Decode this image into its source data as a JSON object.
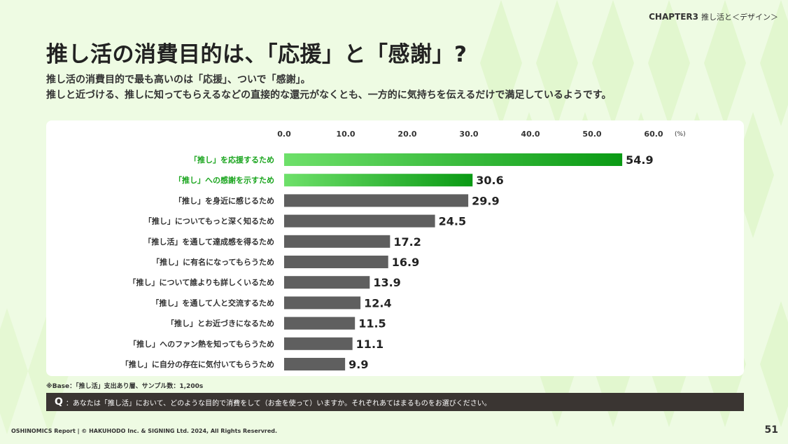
{
  "header": {
    "chapter": "CHAPTER3",
    "chapter_sub": "推し活と＜デザイン＞"
  },
  "title": "推し活の消費目的は、「応援」と「感謝」?",
  "lead": {
    "line1": "推し活の消費目的で最も高いのは「応援」、ついで「感謝」。",
    "line2": "推しと近づける、推しに知ってもらえるなどの直接的な還元がなくとも、一方的に気持ちを伝えるだけで満足しているようです。"
  },
  "chart_data": {
    "type": "bar",
    "orientation": "horizontal",
    "x_ticks": [
      "0.0",
      "10.0",
      "20.0",
      "30.0",
      "40.0",
      "50.0",
      "60.0"
    ],
    "x_unit": "(%)",
    "xlim": [
      0,
      60
    ],
    "categories": [
      "「推し」を応援するため",
      "「推し」への感謝を示すため",
      "「推し」を身近に感じるため",
      "「推し」についてもっと深く知るため",
      "「推し活」を通して達成感を得るため",
      "「推し」に有名になってもらうため",
      "「推し」について誰よりも詳しくいるため",
      "「推し」を通して人と交流するため",
      "「推し」とお近づきになるため",
      "「推し」へのファン熱を知ってもらうため",
      "「推し」に自分の存在に気付いてもらうため"
    ],
    "values": [
      54.9,
      30.6,
      29.9,
      24.5,
      17.2,
      16.9,
      13.9,
      12.4,
      11.5,
      11.1,
      9.9
    ],
    "value_labels": [
      "54.9",
      "30.6",
      "29.9",
      "24.5",
      "17.2",
      "16.9",
      "13.9",
      "12.4",
      "11.5",
      "11.1",
      "9.9"
    ],
    "highlight_count": 2,
    "colors": {
      "highlight_start": "#6ee06a",
      "highlight_end": "#0a9a14",
      "highlight_label": "#1aa51e",
      "normal_bar": "#5f5f5f",
      "normal_label": "#333333"
    }
  },
  "base_note": "※Base：「推し活」支出あり層、サンプル数：1,200s",
  "question": {
    "mark": "Q",
    "text": "：あなたは「推し活」において、どのような目的で消費をして（お金を使って）いますか。それぞれあてはまるものをお選びください。"
  },
  "footer": "OSHINOMICS Report | © HAKUHODO Inc. & SIGNING Ltd. 2024, All Rights Reservred.",
  "page_number": "51"
}
